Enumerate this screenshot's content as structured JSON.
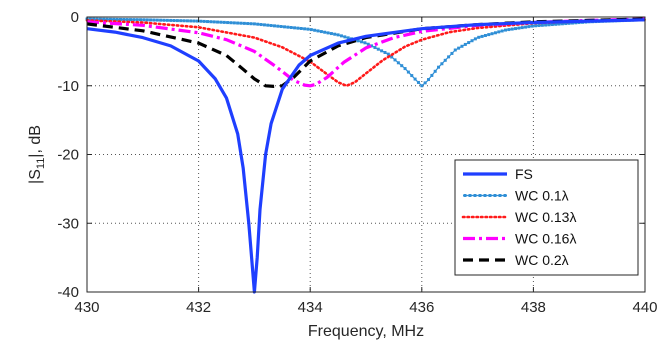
{
  "chart_data": {
    "type": "line",
    "xlabel": "Frequency, MHz",
    "ylabel_parts": [
      "|S",
      "11",
      "|, dB"
    ],
    "xlim": [
      430,
      440
    ],
    "ylim": [
      -40,
      0
    ],
    "x_ticks": [
      430,
      432,
      434,
      436,
      438,
      440
    ],
    "y_ticks": [
      0,
      -10,
      -20,
      -30,
      -40
    ],
    "grid": true,
    "legend_position": "bottom-right",
    "series": [
      {
        "name": "FS",
        "color": "#1f3fff",
        "style": "solid",
        "width": "thick",
        "x": [
          430,
          430.5,
          431,
          431.5,
          432,
          432.3,
          432.5,
          432.7,
          432.8,
          432.9,
          432.95,
          433,
          433.05,
          433.1,
          433.2,
          433.3,
          433.5,
          433.8,
          434,
          434.5,
          435,
          436,
          437,
          438,
          439,
          440
        ],
        "y": [
          -1.7,
          -2.2,
          -3.0,
          -4.2,
          -6.4,
          -9.0,
          -11.8,
          -17.0,
          -22.0,
          -30.0,
          -35.0,
          -40.0,
          -35.0,
          -28.0,
          -20.0,
          -15.5,
          -10.5,
          -7.0,
          -5.6,
          -3.8,
          -2.8,
          -1.7,
          -1.1,
          -0.8,
          -0.6,
          -0.4
        ]
      },
      {
        "name": "WC 0.1λ",
        "color": "#2f8fd6",
        "style": "marker-line",
        "width": "thin",
        "x": [
          430,
          431,
          432,
          433,
          434,
          434.5,
          435,
          435.4,
          435.7,
          435.9,
          436,
          436.1,
          436.3,
          436.6,
          437,
          437.5,
          438,
          439,
          440
        ],
        "y": [
          -0.3,
          -0.4,
          -0.6,
          -1.0,
          -1.8,
          -2.6,
          -3.8,
          -5.4,
          -7.5,
          -9.2,
          -10.0,
          -9.3,
          -7.3,
          -4.8,
          -3.0,
          -1.9,
          -1.3,
          -0.7,
          -0.4
        ]
      },
      {
        "name": "WC 0.13λ",
        "color": "#ff1a1a",
        "style": "dotted",
        "width": "medium",
        "x": [
          430,
          431,
          432,
          433,
          433.5,
          434,
          434.3,
          434.5,
          434.65,
          434.8,
          435,
          435.3,
          435.7,
          436,
          436.5,
          437,
          438,
          439,
          440
        ],
        "y": [
          -0.5,
          -0.8,
          -1.5,
          -3.0,
          -4.4,
          -6.5,
          -8.3,
          -9.5,
          -10.0,
          -9.5,
          -8.2,
          -6.3,
          -4.3,
          -3.3,
          -2.2,
          -1.6,
          -0.9,
          -0.6,
          -0.4
        ]
      },
      {
        "name": "WC 0.16λ",
        "color": "#ff00ff",
        "style": "dash-dot",
        "width": "thick",
        "x": [
          430,
          431,
          432,
          432.5,
          433,
          433.4,
          433.7,
          433.9,
          434,
          434.1,
          434.3,
          434.6,
          435,
          435.5,
          436,
          437,
          438,
          439,
          440
        ],
        "y": [
          -0.7,
          -1.2,
          -2.3,
          -3.3,
          -5.0,
          -7.3,
          -9.2,
          -9.9,
          -10.0,
          -9.8,
          -8.8,
          -6.6,
          -4.5,
          -3.0,
          -2.1,
          -1.2,
          -0.8,
          -0.5,
          -0.3
        ]
      },
      {
        "name": "WC 0.2λ",
        "color": "#000000",
        "style": "dashed",
        "width": "thick",
        "x": [
          430,
          431,
          432,
          432.5,
          432.8,
          433,
          433.2,
          433.35,
          433.5,
          433.7,
          434,
          434.5,
          435,
          436,
          437,
          438,
          439,
          440
        ],
        "y": [
          -1.0,
          -2.0,
          -3.8,
          -5.6,
          -7.6,
          -9.0,
          -10.0,
          -10.1,
          -10.0,
          -8.8,
          -6.4,
          -4.2,
          -3.0,
          -1.7,
          -1.1,
          -0.7,
          -0.5,
          -0.3
        ]
      }
    ]
  }
}
